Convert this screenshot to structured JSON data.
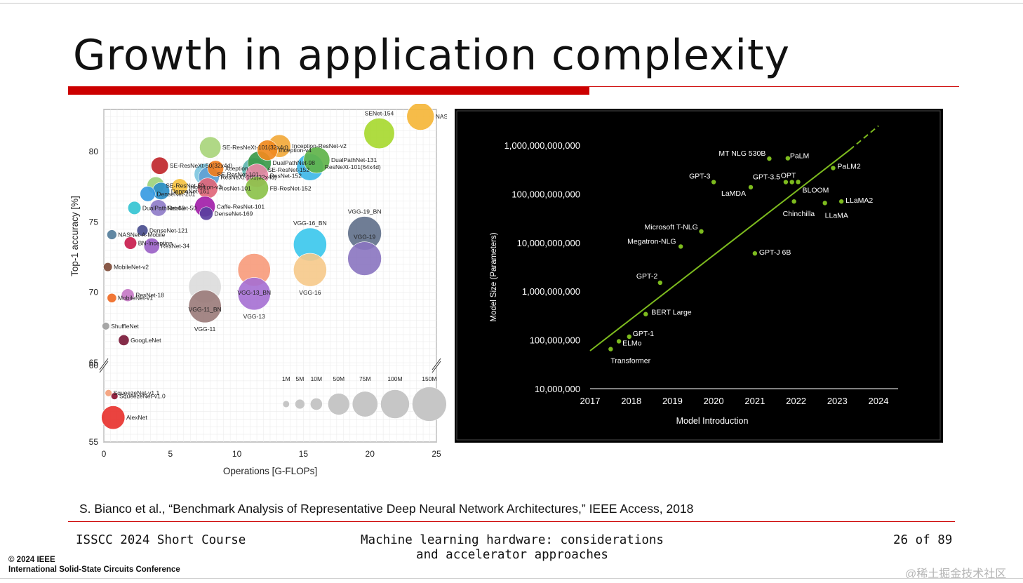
{
  "slide": {
    "title": "Growth in application complexity",
    "citation": "S. Bianco et al., “Benchmark Analysis of Representative Deep Neural Network Architectures,” IEEE Access, 2018",
    "footer_left": "ISSCC 2024 Short Course",
    "footer_center_line1": "Machine learning hardware:  considerations",
    "footer_center_line2": "and accelerator approaches",
    "page": "26 of 89",
    "ieee_line1": "© 2024 IEEE",
    "ieee_line2": "International Solid-State Circuits Conference",
    "watermark": "@稀土掘金技术社区",
    "colors": {
      "accent_red": "#cc0000",
      "trend_green": "#7dbb1e"
    }
  },
  "chart_data": [
    {
      "type": "scatter",
      "title": "",
      "xlabel": "Operations [G-FLOPs]",
      "ylabel": "Top-1 accuracy [%]",
      "xlim": [
        0,
        25
      ],
      "ylim": [
        55,
        83
      ],
      "axis_break": [
        60,
        65
      ],
      "xticks": [
        "0",
        "5",
        "10",
        "15",
        "20",
        "25"
      ],
      "yticks_upper": [
        "65",
        "70",
        "75",
        "80"
      ],
      "yticks_lower": [
        "55",
        "60"
      ],
      "grid": true,
      "points": [
        {
          "name": "NASNet-A-Large",
          "x": 23.8,
          "y": 82.5,
          "params": 89,
          "color": "#f5b63a"
        },
        {
          "name": "SENet-154",
          "x": 20.7,
          "y": 81.3,
          "params": 115,
          "color": "#a6d82c"
        },
        {
          "name": "SE-ResNeXt-101(32x4d)",
          "x": 8.0,
          "y": 80.3,
          "params": 49,
          "color": "#a9d57c"
        },
        {
          "name": "Inception-ResNet-v2",
          "x": 13.2,
          "y": 80.4,
          "params": 56,
          "color": "#f2a93b"
        },
        {
          "name": "Inception-v4",
          "x": 12.3,
          "y": 80.1,
          "params": 43,
          "color": "#f08a1f"
        },
        {
          "name": "DualPathNet-131",
          "x": 16.0,
          "y": 79.4,
          "params": 80,
          "color": "#5fb34a"
        },
        {
          "name": "DualPathNet-98",
          "x": 11.7,
          "y": 79.2,
          "params": 61,
          "color": "#3c9a4a"
        },
        {
          "name": "SE-ResNeXt-50(32x4d)",
          "x": 4.2,
          "y": 79.0,
          "params": 28,
          "color": "#c0272d"
        },
        {
          "name": "ResNeXt-101(64x4d)",
          "x": 15.5,
          "y": 78.9,
          "params": 84,
          "color": "#3fb7e8"
        },
        {
          "name": "Xception",
          "x": 8.4,
          "y": 78.8,
          "params": 23,
          "color": "#f07d1d"
        },
        {
          "name": "SE-ResNet-101",
          "x": 7.6,
          "y": 78.4,
          "params": 49,
          "color": "#7fc7e0"
        },
        {
          "name": "SE-ResNet-152",
          "x": 11.3,
          "y": 78.7,
          "params": 67,
          "color": "#5fb5b0"
        },
        {
          "name": "ResNeXt-101(32x4d)",
          "x": 7.9,
          "y": 78.2,
          "params": 44,
          "color": "#5e9fd4"
        },
        {
          "name": "ResNet-152",
          "x": 11.5,
          "y": 78.3,
          "params": 60,
          "color": "#e78aa7"
        },
        {
          "name": "Inception-v3",
          "x": 5.7,
          "y": 77.5,
          "params": 24,
          "color": "#f5c242"
        },
        {
          "name": "SE-ResNet-50",
          "x": 3.9,
          "y": 77.6,
          "params": 28,
          "color": "#9cd37d"
        },
        {
          "name": "ResNet-101",
          "x": 7.8,
          "y": 77.4,
          "params": 44,
          "color": "#e0677a"
        },
        {
          "name": "FB-ResNet-152",
          "x": 11.5,
          "y": 77.4,
          "params": 60,
          "color": "#8cc24a"
        },
        {
          "name": "DenseNet-201",
          "x": 3.3,
          "y": 77.0,
          "params": 20,
          "color": "#3a9be2"
        },
        {
          "name": "DenseNet-161",
          "x": 4.3,
          "y": 77.2,
          "params": 28,
          "color": "#2b8ec8"
        },
        {
          "name": "DualPathNet-68",
          "x": 2.3,
          "y": 76.0,
          "params": 13,
          "color": "#35c4d2"
        },
        {
          "name": "ResNet-50",
          "x": 4.1,
          "y": 76.0,
          "params": 25,
          "color": "#8f7dc9"
        },
        {
          "name": "Caffe-ResNet-101",
          "x": 7.6,
          "y": 76.1,
          "params": 44,
          "color": "#a21fa9"
        },
        {
          "name": "DenseNet-169",
          "x": 7.7,
          "y": 75.6,
          "params": 14,
          "color": "#5a3f9e"
        },
        {
          "name": "VGG-19_BN",
          "x": 19.6,
          "y": 74.2,
          "params": 143,
          "color": "#5f6f89"
        },
        {
          "name": "VGG-16_BN",
          "x": 15.5,
          "y": 73.4,
          "params": 138,
          "color": "#38c6ec"
        },
        {
          "name": "DenseNet-121",
          "x": 2.9,
          "y": 74.4,
          "params": 8,
          "color": "#4a4e8f"
        },
        {
          "name": "NASNet-A-Mobile",
          "x": 0.6,
          "y": 74.1,
          "params": 5,
          "color": "#527d9a"
        },
        {
          "name": "BN-Inception",
          "x": 2.0,
          "y": 73.5,
          "params": 11,
          "color": "#c81d4e"
        },
        {
          "name": "ResNet-34",
          "x": 3.6,
          "y": 73.3,
          "params": 22,
          "color": "#9b62c7"
        },
        {
          "name": "VGG-13_BN",
          "x": 11.3,
          "y": 71.6,
          "params": 133,
          "color": "#f79a7a"
        },
        {
          "name": "VGG-19",
          "x": 19.6,
          "y": 72.4,
          "params": 143,
          "color": "#8a74c0"
        },
        {
          "name": "VGG-16",
          "x": 15.5,
          "y": 71.6,
          "params": 138,
          "color": "#f6c98a"
        },
        {
          "name": "MobileNet-v2",
          "x": 0.3,
          "y": 71.8,
          "params": 3.5,
          "color": "#7f4c39"
        },
        {
          "name": "VGG-11_BN",
          "x": 7.6,
          "y": 70.4,
          "params": 133,
          "color": "#dcdcdc"
        },
        {
          "name": "VGG-13",
          "x": 11.3,
          "y": 69.9,
          "params": 133,
          "color": "#a56fd3"
        },
        {
          "name": "VGG-11",
          "x": 7.6,
          "y": 69.0,
          "params": 133,
          "color": "#9a7a79"
        },
        {
          "name": "ResNet-18",
          "x": 1.8,
          "y": 69.8,
          "params": 12,
          "color": "#c67ac5"
        },
        {
          "name": "MobileNet-v1",
          "x": 0.6,
          "y": 69.6,
          "params": 4.2,
          "color": "#f06b25"
        },
        {
          "name": "ShuffleNet",
          "x": 0.15,
          "y": 67.6,
          "params": 1.8,
          "color": "#a0a0a0"
        },
        {
          "name": "GoogLeNet",
          "x": 1.5,
          "y": 66.6,
          "params": 7,
          "color": "#7b1a3a"
        },
        {
          "name": "SqueezeNet-v1.1",
          "x": 0.35,
          "y": 58.2,
          "params": 1.2,
          "color": "#f4a07a"
        },
        {
          "name": "SqueezeNet-v1.0",
          "x": 0.8,
          "y": 58.0,
          "params": 1.2,
          "color": "#8a1231"
        },
        {
          "name": "AlexNet",
          "x": 0.7,
          "y": 56.6,
          "params": 61,
          "color": "#e8332f"
        }
      ],
      "size_legend": [
        {
          "label": "1M",
          "params": 1
        },
        {
          "label": "5M",
          "params": 5
        },
        {
          "label": "10M",
          "params": 10
        },
        {
          "label": "50M",
          "params": 50
        },
        {
          "label": "75M",
          "params": 75
        },
        {
          "label": "100M",
          "params": 100
        },
        {
          "label": "150M",
          "params": 150
        }
      ]
    },
    {
      "type": "scatter",
      "title": "",
      "xlabel": "Model Introduction",
      "ylabel": "Model Size (Parameters)",
      "xlim": [
        2017,
        2024
      ],
      "ylim": [
        10000000,
        1000000000000
      ],
      "yscale": "log",
      "xticks": [
        "2017",
        "2018",
        "2019",
        "2020",
        "2021",
        "2022",
        "2023",
        "2024"
      ],
      "yticks": [
        "10,000,000",
        "100,000,000",
        "1,000,000,000",
        "10,000,000,000",
        "100,000,000,000",
        "1,000,000,000,000"
      ],
      "grid": false,
      "background": "#000000",
      "point_color": "#7dbb1e",
      "trendline": {
        "solid_from": [
          2017.0,
          60000000
        ],
        "solid_to": [
          2023.3,
          800000000000
        ],
        "dashed_to": [
          2024.0,
          2500000000000
        ]
      },
      "points": [
        {
          "name": "Transformer",
          "x": 2017.5,
          "y": 65000000
        },
        {
          "name": "ELMo",
          "x": 2017.7,
          "y": 94000000
        },
        {
          "name": "GPT-1",
          "x": 2017.95,
          "y": 117000000
        },
        {
          "name": "BERT Large",
          "x": 2018.35,
          "y": 340000000
        },
        {
          "name": "GPT-2",
          "x": 2018.7,
          "y": 1500000000
        },
        {
          "name": "Megatron-NLG",
          "x": 2019.2,
          "y": 8300000000
        },
        {
          "name": "Microsoft T-NLG",
          "x": 2019.7,
          "y": 17000000000
        },
        {
          "name": "GPT-3",
          "x": 2020.0,
          "y": 175000000000
        },
        {
          "name": "LaMDA",
          "x": 2020.9,
          "y": 137000000000
        },
        {
          "name": "GPT-J 6B",
          "x": 2021.0,
          "y": 6000000000
        },
        {
          "name": "MT NLG 530B",
          "x": 2021.35,
          "y": 530000000000
        },
        {
          "name": "PaLM",
          "x": 2021.8,
          "y": 540000000000
        },
        {
          "name": "GPT-3.5",
          "x": 2021.75,
          "y": 175000000000
        },
        {
          "name": "OPT",
          "x": 2021.9,
          "y": 175000000000
        },
        {
          "name": "BLOOM",
          "x": 2022.05,
          "y": 176000000000
        },
        {
          "name": "Chinchilla",
          "x": 2021.95,
          "y": 70000000000
        },
        {
          "name": "PaLM2",
          "x": 2022.9,
          "y": 340000000000
        },
        {
          "name": "LLaMA",
          "x": 2022.7,
          "y": 65000000000
        },
        {
          "name": "LLaMA2",
          "x": 2023.1,
          "y": 70000000000
        }
      ]
    }
  ]
}
